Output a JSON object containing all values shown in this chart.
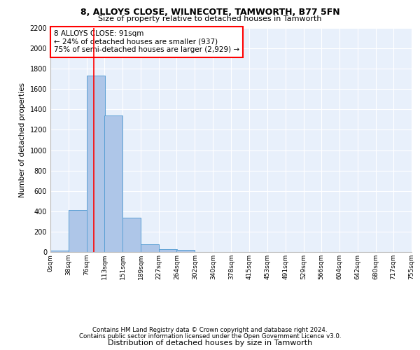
{
  "title_line1": "8, ALLOYS CLOSE, WILNECOTE, TAMWORTH, B77 5FN",
  "title_line2": "Size of property relative to detached houses in Tamworth",
  "xlabel": "Distribution of detached houses by size in Tamworth",
  "ylabel": "Number of detached properties",
  "bar_color": "#aec6e8",
  "bar_edge_color": "#5a9fd4",
  "background_color": "#e8f0fb",
  "grid_color": "#ffffff",
  "annotation_text": "8 ALLOYS CLOSE: 91sqm\n← 24% of detached houses are smaller (937)\n75% of semi-detached houses are larger (2,929) →",
  "red_line_x": 91,
  "bin_edges": [
    0,
    38,
    76,
    113,
    151,
    189,
    227,
    264,
    302,
    340,
    378,
    415,
    453,
    491,
    529,
    566,
    604,
    642,
    680,
    717,
    755
  ],
  "bin_counts": [
    15,
    410,
    1730,
    1340,
    340,
    75,
    30,
    20,
    0,
    0,
    0,
    0,
    0,
    0,
    0,
    0,
    0,
    0,
    0,
    0
  ],
  "ylim": [
    0,
    2200
  ],
  "yticks": [
    0,
    200,
    400,
    600,
    800,
    1000,
    1200,
    1400,
    1600,
    1800,
    2000,
    2200
  ],
  "tick_labels": [
    "0sqm",
    "38sqm",
    "76sqm",
    "113sqm",
    "151sqm",
    "189sqm",
    "227sqm",
    "264sqm",
    "302sqm",
    "340sqm",
    "378sqm",
    "415sqm",
    "453sqm",
    "491sqm",
    "529sqm",
    "566sqm",
    "604sqm",
    "642sqm",
    "680sqm",
    "717sqm",
    "755sqm"
  ],
  "footer_line1": "Contains HM Land Registry data © Crown copyright and database right 2024.",
  "footer_line2": "Contains public sector information licensed under the Open Government Licence v3.0."
}
